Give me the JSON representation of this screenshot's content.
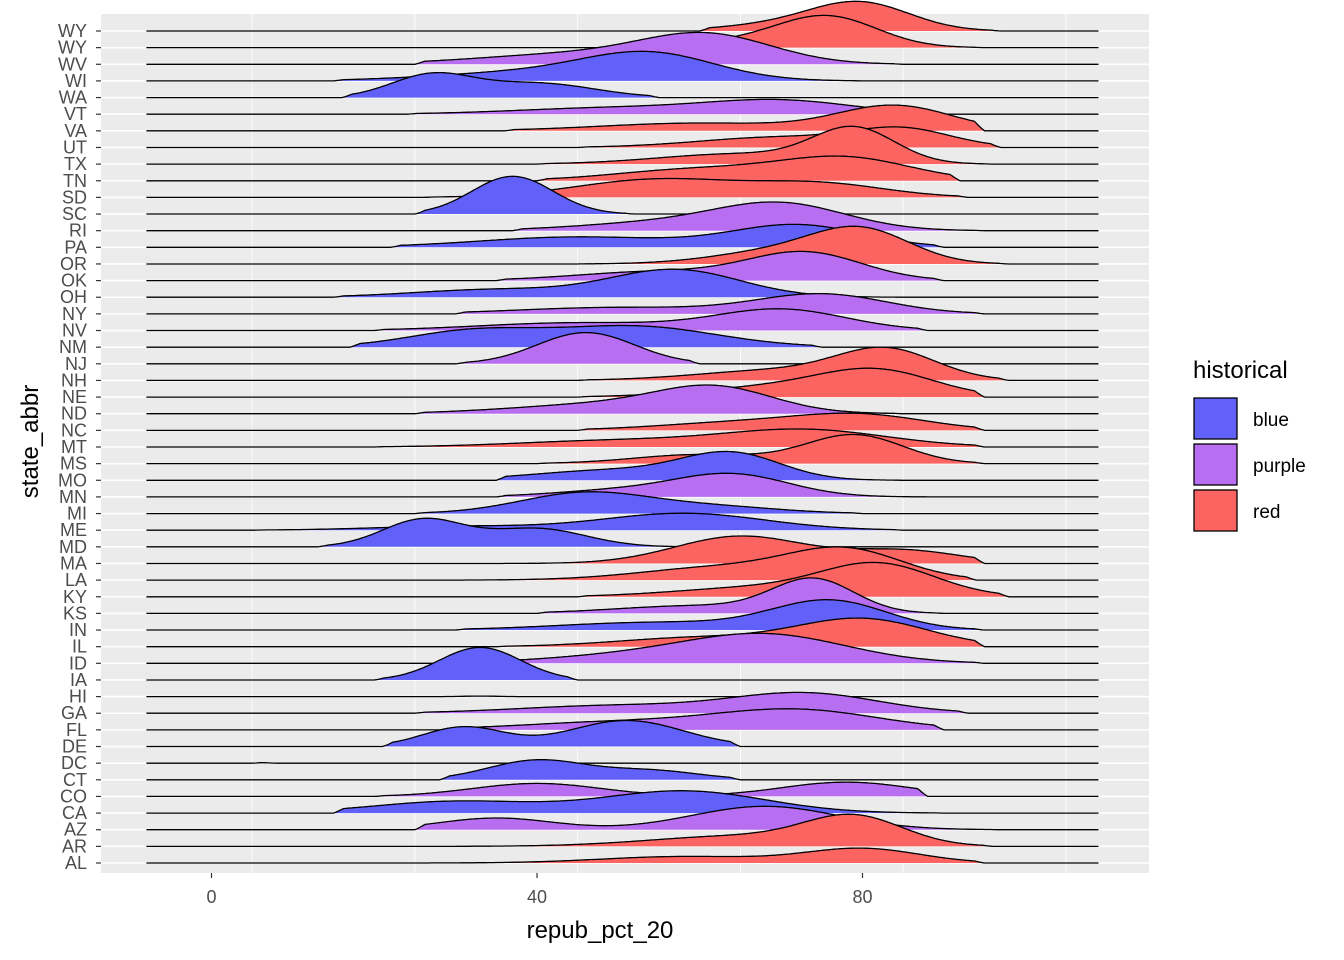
{
  "chart_data": {
    "type": "ridgeline",
    "xlabel": "repub_pct_20",
    "ylabel": "state_abbr",
    "xlim": [
      -15,
      115
    ],
    "xticks": [
      0,
      40,
      80
    ],
    "legend": {
      "title": "historical",
      "position": "right",
      "entries": [
        {
          "name": "blue",
          "color": "#6161fa"
        },
        {
          "name": "purple",
          "color": "#b86ef0"
        },
        {
          "name": "red",
          "color": "#fb6461"
        }
      ]
    },
    "colors": {
      "blue": "#6161fa",
      "purple": "#b86ef0",
      "red": "#fb6461"
    },
    "grid": true,
    "range": [
      -8,
      109
    ],
    "states": [
      {
        "abbr": "AL",
        "group": "red",
        "start": 19,
        "end": 95,
        "peaks": [
          [
            58,
            0.25,
            10
          ],
          [
            80,
            0.55,
            7
          ]
        ]
      },
      {
        "abbr": "AR",
        "group": "red",
        "start": 30,
        "end": 96,
        "peaks": [
          [
            65,
            0.4,
            11
          ],
          [
            79,
            1.05,
            6
          ]
        ]
      },
      {
        "abbr": "AZ",
        "group": "purple",
        "start": 25,
        "end": 97,
        "peaks": [
          [
            35,
            0.45,
            7
          ],
          [
            68,
            0.9,
            9
          ]
        ]
      },
      {
        "abbr": "CA",
        "group": "blue",
        "start": 15,
        "end": 90,
        "peaks": [
          [
            30,
            0.45,
            10
          ],
          [
            58,
            0.85,
            10
          ]
        ]
      },
      {
        "abbr": "CO",
        "group": "purple",
        "start": 20,
        "end": 88,
        "peaks": [
          [
            40,
            0.5,
            8
          ],
          [
            78,
            0.55,
            8
          ]
        ]
      },
      {
        "abbr": "CT",
        "group": "blue",
        "start": 28,
        "end": 65,
        "peaks": [
          [
            40,
            0.75,
            6
          ],
          [
            54,
            0.35,
            6
          ]
        ]
      },
      {
        "abbr": "DC",
        "group": "blue",
        "start": 5,
        "end": 8,
        "peaks": [
          [
            6,
            0.02,
            1
          ]
        ]
      },
      {
        "abbr": "DE",
        "group": "blue",
        "start": 21,
        "end": 65,
        "peaks": [
          [
            31,
            0.75,
            5
          ],
          [
            51,
            1.0,
            7
          ]
        ]
      },
      {
        "abbr": "FL",
        "group": "purple",
        "start": 28,
        "end": 90,
        "peaks": [
          [
            50,
            0.3,
            12
          ],
          [
            72,
            0.75,
            10
          ]
        ]
      },
      {
        "abbr": "GA",
        "group": "purple",
        "start": 25,
        "end": 93,
        "peaks": [
          [
            50,
            0.3,
            12
          ],
          [
            73,
            0.75,
            9
          ]
        ]
      },
      {
        "abbr": "HI",
        "group": "blue",
        "start": 20,
        "end": 45,
        "peaks": [
          [
            33,
            0.02,
            2
          ]
        ]
      },
      {
        "abbr": "IA",
        "group": "blue",
        "start": 20,
        "end": 45,
        "peaks": [
          [
            33,
            1.25,
            5
          ]
        ]
      },
      {
        "abbr": "ID",
        "group": "purple",
        "start": 30,
        "end": 95,
        "peaks": [
          [
            50,
            0.25,
            10
          ],
          [
            68,
            1.1,
            10
          ]
        ]
      },
      {
        "abbr": "IL",
        "group": "red",
        "start": 35,
        "end": 95,
        "peaks": [
          [
            60,
            0.35,
            10
          ],
          [
            80,
            1.05,
            8
          ]
        ]
      },
      {
        "abbr": "IN",
        "group": "blue",
        "start": 30,
        "end": 95,
        "peaks": [
          [
            55,
            0.3,
            12
          ],
          [
            76,
            1.1,
            7
          ]
        ]
      },
      {
        "abbr": "KS",
        "group": "purple",
        "start": 40,
        "end": 90,
        "peaks": [
          [
            60,
            0.3,
            10
          ],
          [
            74,
            1.25,
            5
          ]
        ]
      },
      {
        "abbr": "KY",
        "group": "red",
        "start": 45,
        "end": 98,
        "peaks": [
          [
            67,
            0.35,
            10
          ],
          [
            82,
            1.2,
            7
          ]
        ]
      },
      {
        "abbr": "LA",
        "group": "red",
        "start": 30,
        "end": 94,
        "peaks": [
          [
            63,
            0.5,
            10
          ],
          [
            78,
            1.1,
            7
          ]
        ]
      },
      {
        "abbr": "MA",
        "group": "red",
        "start": 35,
        "end": 95,
        "peaks": [
          [
            65,
            1.05,
            8
          ],
          [
            85,
            0.5,
            7
          ]
        ]
      },
      {
        "abbr": "MD",
        "group": "blue",
        "start": 13,
        "end": 63,
        "peaks": [
          [
            26,
            1.05,
            5
          ],
          [
            40,
            0.7,
            6
          ]
        ]
      },
      {
        "abbr": "ME",
        "group": "blue",
        "start": 5,
        "end": 85,
        "peaks": [
          [
            30,
            0.15,
            10
          ],
          [
            58,
            0.65,
            10
          ]
        ]
      },
      {
        "abbr": "MI",
        "group": "blue",
        "start": 25,
        "end": 80,
        "peaks": [
          [
            46,
            0.8,
            8
          ],
          [
            62,
            0.25,
            8
          ]
        ]
      },
      {
        "abbr": "MN",
        "group": "purple",
        "start": 35,
        "end": 90,
        "peaks": [
          [
            50,
            0.25,
            8
          ],
          [
            64,
            0.85,
            7
          ]
        ]
      },
      {
        "abbr": "MO",
        "group": "blue",
        "start": 35,
        "end": 85,
        "peaks": [
          [
            50,
            0.4,
            10
          ],
          [
            64,
            0.95,
            6
          ]
        ]
      },
      {
        "abbr": "MS",
        "group": "red",
        "start": 40,
        "end": 95,
        "peaks": [
          [
            60,
            0.35,
            8
          ],
          [
            79,
            1.1,
            6
          ]
        ]
      },
      {
        "abbr": "MT",
        "group": "red",
        "start": 20,
        "end": 95,
        "peaks": [
          [
            50,
            0.25,
            12
          ],
          [
            73,
            0.65,
            10
          ]
        ]
      },
      {
        "abbr": "NC",
        "group": "red",
        "start": 45,
        "end": 95,
        "peaks": [
          [
            65,
            0.3,
            10
          ],
          [
            80,
            0.55,
            8
          ]
        ]
      },
      {
        "abbr": "ND",
        "group": "purple",
        "start": 25,
        "end": 85,
        "peaks": [
          [
            50,
            0.4,
            12
          ],
          [
            62,
            0.85,
            7
          ]
        ]
      },
      {
        "abbr": "NE",
        "group": "red",
        "start": 45,
        "end": 95,
        "peaks": [
          [
            70,
            0.4,
            10
          ],
          [
            82,
            0.9,
            7
          ]
        ]
      },
      {
        "abbr": "NH",
        "group": "red",
        "start": 45,
        "end": 98,
        "peaks": [
          [
            70,
            0.4,
            10
          ],
          [
            83,
            1.1,
            6
          ]
        ]
      },
      {
        "abbr": "NJ",
        "group": "purple",
        "start": 30,
        "end": 60,
        "peaks": [
          [
            46,
            1.2,
            6
          ]
        ]
      },
      {
        "abbr": "NM",
        "group": "blue",
        "start": 17,
        "end": 75,
        "peaks": [
          [
            32,
            0.6,
            8
          ],
          [
            52,
            0.8,
            10
          ]
        ]
      },
      {
        "abbr": "NV",
        "group": "purple",
        "start": 20,
        "end": 88,
        "peaks": [
          [
            45,
            0.3,
            12
          ],
          [
            70,
            0.8,
            8
          ]
        ]
      },
      {
        "abbr": "NY",
        "group": "purple",
        "start": 30,
        "end": 95,
        "peaks": [
          [
            50,
            0.25,
            12
          ],
          [
            75,
            0.75,
            8
          ]
        ]
      },
      {
        "abbr": "OH",
        "group": "blue",
        "start": 15,
        "end": 88,
        "peaks": [
          [
            35,
            0.3,
            10
          ],
          [
            57,
            1.05,
            8
          ]
        ]
      },
      {
        "abbr": "OK",
        "group": "purple",
        "start": 35,
        "end": 90,
        "peaks": [
          [
            55,
            0.35,
            10
          ],
          [
            73,
            1.05,
            7
          ]
        ]
      },
      {
        "abbr": "OR",
        "group": "red",
        "start": 45,
        "end": 98,
        "peaks": [
          [
            70,
            0.5,
            8
          ],
          [
            80,
            1.2,
            6
          ]
        ]
      },
      {
        "abbr": "PA",
        "group": "blue",
        "start": 22,
        "end": 90,
        "peaks": [
          [
            45,
            0.4,
            12
          ],
          [
            72,
            0.85,
            8
          ]
        ]
      },
      {
        "abbr": "RI",
        "group": "purple",
        "start": 37,
        "end": 95,
        "peaks": [
          [
            55,
            0.3,
            10
          ],
          [
            70,
            1.0,
            8
          ]
        ]
      },
      {
        "abbr": "SC",
        "group": "blue",
        "start": 25,
        "end": 52,
        "peaks": [
          [
            37,
            1.45,
            5
          ]
        ]
      },
      {
        "abbr": "SD",
        "group": "red",
        "start": 26,
        "end": 93,
        "peaks": [
          [
            55,
            0.7,
            10
          ],
          [
            75,
            0.5,
            8
          ]
        ]
      },
      {
        "abbr": "TN",
        "group": "red",
        "start": 40,
        "end": 92,
        "peaks": [
          [
            60,
            0.45,
            10
          ],
          [
            78,
            0.85,
            8
          ]
        ]
      },
      {
        "abbr": "TX",
        "group": "red",
        "start": 40,
        "end": 96,
        "peaks": [
          [
            65,
            0.4,
            10
          ],
          [
            79,
            1.3,
            5
          ]
        ]
      },
      {
        "abbr": "UT",
        "group": "red",
        "start": 45,
        "end": 97,
        "peaks": [
          [
            70,
            0.4,
            10
          ],
          [
            85,
            0.65,
            6
          ]
        ]
      },
      {
        "abbr": "VA",
        "group": "red",
        "start": 36,
        "end": 95,
        "peaks": [
          [
            60,
            0.3,
            12
          ],
          [
            84,
            0.95,
            7
          ]
        ]
      },
      {
        "abbr": "VT",
        "group": "purple",
        "start": 24,
        "end": 90,
        "peaks": [
          [
            50,
            0.25,
            12
          ],
          [
            70,
            0.5,
            9
          ]
        ]
      },
      {
        "abbr": "WA",
        "group": "blue",
        "start": 16,
        "end": 55,
        "peaks": [
          [
            27,
            0.85,
            5
          ],
          [
            40,
            0.55,
            7
          ]
        ]
      },
      {
        "abbr": "WI",
        "group": "blue",
        "start": 15,
        "end": 80,
        "peaks": [
          [
            40,
            0.35,
            12
          ],
          [
            54,
            0.95,
            8
          ]
        ]
      },
      {
        "abbr": "WV",
        "group": "purple",
        "start": 25,
        "end": 85,
        "peaks": [
          [
            45,
            0.4,
            12
          ],
          [
            61,
            1.05,
            8
          ]
        ]
      },
      {
        "abbr": "WY",
        "group": "red",
        "start": 55,
        "end": 95,
        "peaks": [
          [
            68,
            0.3,
            8
          ],
          [
            76,
            1.05,
            6
          ]
        ]
      },
      {
        "abbr": "WY2",
        "group": "red",
        "start": 60,
        "end": 97,
        "peaks": [
          [
            72,
            0.3,
            8
          ],
          [
            80,
            0.95,
            6
          ]
        ]
      }
    ]
  }
}
